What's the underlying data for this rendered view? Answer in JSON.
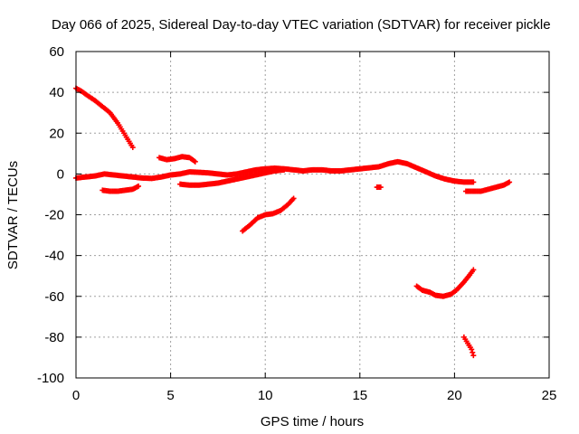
{
  "chart_data": {
    "type": "scatter",
    "title": "Day 066 of 2025, Sidereal Day-to-day VTEC variation (SDTVAR) for receiver pickle",
    "xlabel": "GPS time / hours",
    "ylabel": "SDTVAR / TECUs",
    "xlim": [
      0,
      25
    ],
    "ylim": [
      -100,
      60
    ],
    "xticks": [
      "0",
      "5",
      "10",
      "15",
      "20",
      "25"
    ],
    "yticks": [
      "-100",
      "-80",
      "-60",
      "-40",
      "-20",
      "0",
      "20",
      "40",
      "60"
    ],
    "grid": true,
    "legend": "none",
    "marker": "+",
    "color": "#ff0000",
    "series": [
      {
        "values": [
          [
            0.0,
            42
          ],
          [
            0.3,
            40.5
          ],
          [
            0.6,
            38.5
          ],
          [
            1.0,
            36
          ],
          [
            1.4,
            33
          ],
          [
            1.8,
            30
          ],
          [
            2.2,
            25
          ],
          [
            2.6,
            19
          ],
          [
            3.0,
            13
          ]
        ]
      },
      {
        "values": [
          [
            0.0,
            -2
          ],
          [
            0.5,
            -1.5
          ],
          [
            1.0,
            -1
          ],
          [
            1.5,
            0
          ],
          [
            2.0,
            -0.5
          ],
          [
            2.5,
            -1
          ],
          [
            3.0,
            -1.5
          ],
          [
            3.5,
            -2
          ],
          [
            4.0,
            -2.2
          ],
          [
            4.5,
            -1.5
          ],
          [
            5.0,
            -0.5
          ],
          [
            5.5,
            0
          ],
          [
            6.0,
            1
          ],
          [
            6.5,
            0.8
          ],
          [
            7.0,
            0.5
          ],
          [
            7.5,
            0
          ],
          [
            8.0,
            -0.5
          ],
          [
            8.5,
            0
          ],
          [
            9.0,
            1
          ],
          [
            9.5,
            2
          ],
          [
            10.0,
            2.5
          ],
          [
            10.5,
            2.8
          ],
          [
            11.0,
            2.5
          ],
          [
            11.5,
            2
          ],
          [
            12.0,
            1.5
          ],
          [
            12.5,
            2
          ],
          [
            13.0,
            2
          ],
          [
            13.5,
            1.5
          ],
          [
            14.0,
            1.5
          ],
          [
            14.5,
            2
          ],
          [
            15.0,
            2.5
          ],
          [
            15.5,
            3
          ],
          [
            16.0,
            3.5
          ],
          [
            16.5,
            5
          ],
          [
            17.0,
            6
          ],
          [
            17.5,
            5
          ],
          [
            18.0,
            3
          ],
          [
            18.5,
            1
          ],
          [
            19.0,
            -1
          ],
          [
            19.5,
            -2.5
          ],
          [
            20.0,
            -3.5
          ],
          [
            20.5,
            -4
          ],
          [
            21.0,
            -4
          ]
        ]
      },
      {
        "values": [
          [
            1.4,
            -8
          ],
          [
            1.8,
            -8.5
          ],
          [
            2.2,
            -8.5
          ],
          [
            2.6,
            -8
          ],
          [
            3.0,
            -7.5
          ],
          [
            3.3,
            -6
          ]
        ]
      },
      {
        "values": [
          [
            4.4,
            8
          ],
          [
            4.8,
            7
          ],
          [
            5.2,
            7.5
          ],
          [
            5.6,
            8.5
          ],
          [
            6.0,
            8
          ],
          [
            6.3,
            6
          ]
        ]
      },
      {
        "values": [
          [
            5.5,
            -5
          ],
          [
            6.0,
            -5.5
          ],
          [
            6.5,
            -5.5
          ],
          [
            7.0,
            -5
          ],
          [
            7.5,
            -4.5
          ],
          [
            8.0,
            -3.5
          ],
          [
            8.5,
            -2.5
          ],
          [
            9.0,
            -1.5
          ],
          [
            9.5,
            -0.5
          ],
          [
            10.0,
            0.5
          ],
          [
            10.5,
            1.5
          ],
          [
            11.0,
            2
          ]
        ]
      },
      {
        "values": [
          [
            8.8,
            -28
          ],
          [
            9.2,
            -25
          ],
          [
            9.6,
            -21.5
          ],
          [
            10.0,
            -20
          ],
          [
            10.4,
            -19.5
          ],
          [
            10.8,
            -18
          ],
          [
            11.2,
            -15
          ],
          [
            11.5,
            -12
          ]
        ]
      },
      {
        "values": [
          [
            15.9,
            -6.5
          ],
          [
            16.1,
            -6.5
          ]
        ]
      },
      {
        "values": [
          [
            18.0,
            -55
          ],
          [
            18.3,
            -57
          ],
          [
            18.7,
            -58
          ],
          [
            19.0,
            -59.5
          ],
          [
            19.4,
            -60
          ],
          [
            19.8,
            -59
          ],
          [
            20.1,
            -57
          ],
          [
            20.5,
            -53
          ],
          [
            20.8,
            -49.5
          ],
          [
            21.0,
            -47
          ]
        ]
      },
      {
        "values": [
          [
            20.5,
            -80
          ],
          [
            20.7,
            -83
          ],
          [
            20.9,
            -86
          ],
          [
            21.0,
            -89
          ]
        ]
      },
      {
        "values": [
          [
            20.6,
            -8.5
          ],
          [
            21.0,
            -8.5
          ],
          [
            21.4,
            -8.5
          ],
          [
            21.8,
            -7.5
          ],
          [
            22.2,
            -6.5
          ],
          [
            22.6,
            -5.5
          ],
          [
            22.9,
            -4
          ]
        ]
      }
    ]
  }
}
